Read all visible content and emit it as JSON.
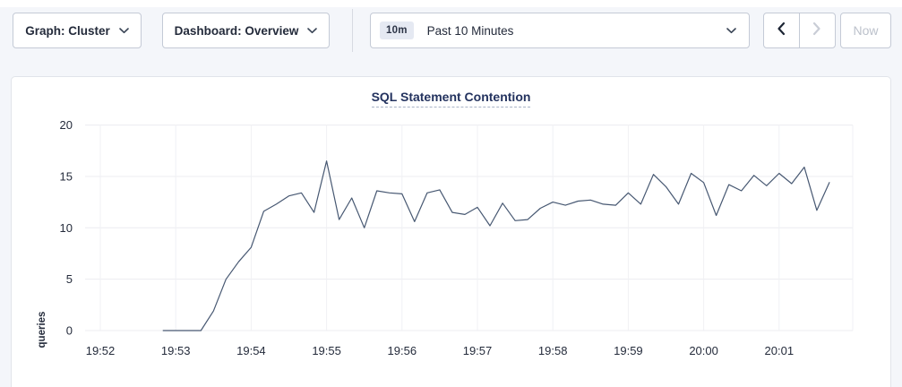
{
  "toolbar": {
    "graph_dropdown": {
      "label": "Graph: Cluster"
    },
    "dashboard_dropdown": {
      "label": "Dashboard: Overview"
    },
    "time_range": {
      "badge": "10m",
      "label": "Past 10 Minutes"
    },
    "prev_button": {
      "icon": "chevron-left-icon",
      "enabled": true
    },
    "next_button": {
      "icon": "chevron-right-icon",
      "enabled": false
    },
    "now_button": {
      "label": "Now",
      "enabled": false
    }
  },
  "chart": {
    "title": "SQL Statement Contention",
    "ylabel": "queries"
  },
  "chart_data": {
    "type": "line",
    "title": "SQL Statement Contention",
    "xlabel": "",
    "ylabel": "queries",
    "ylim": [
      0,
      20
    ],
    "yticks": [
      0,
      5,
      10,
      15,
      20
    ],
    "xticks": [
      "19:52",
      "19:53",
      "19:54",
      "19:55",
      "19:56",
      "19:57",
      "19:58",
      "19:59",
      "20:00",
      "20:01"
    ],
    "grid": true,
    "legend_position": "none",
    "line_color": "#475872",
    "series": [
      {
        "name": "queries",
        "start_time": "19:52:50",
        "interval_seconds": 10,
        "values": [
          0,
          0,
          0,
          0,
          1.9,
          5.0,
          6.7,
          8.1,
          11.6,
          12.3,
          13.1,
          13.4,
          11.5,
          16.5,
          10.8,
          12.9,
          10.0,
          13.6,
          13.4,
          13.3,
          10.6,
          13.4,
          13.7,
          11.5,
          11.3,
          12.0,
          10.2,
          12.4,
          10.7,
          10.8,
          11.9,
          12.5,
          12.2,
          12.6,
          12.7,
          12.3,
          12.2,
          13.4,
          12.3,
          15.2,
          14.0,
          12.3,
          15.3,
          14.4,
          11.2,
          14.2,
          13.6,
          15.1,
          14.1,
          15.3,
          14.3,
          15.9,
          11.7,
          14.4
        ]
      }
    ]
  },
  "colors": {
    "page_bg": "#f4f6fa",
    "card_bg": "#ffffff",
    "card_border": "#e1e4ea",
    "button_border": "#c4cad6",
    "title_navy": "#24335f",
    "line": "#475872",
    "gridline": "#ececf0",
    "disabled_text": "#bcc1cb",
    "badge_bg": "#e5e9f2"
  }
}
